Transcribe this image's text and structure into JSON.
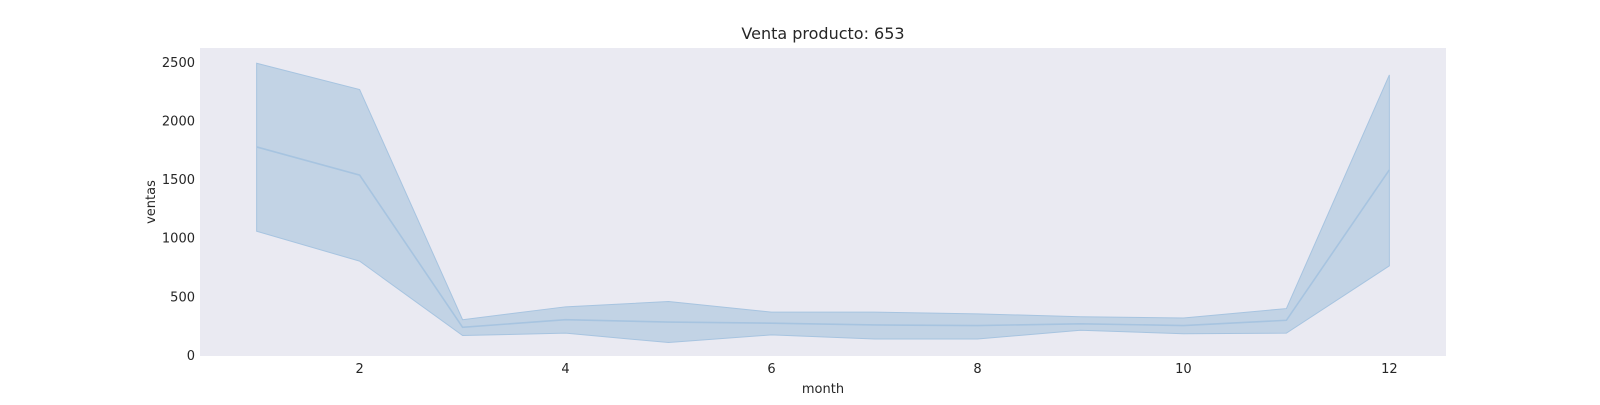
{
  "chart_data": {
    "type": "line",
    "title": "Venta producto: 653",
    "xlabel": "month",
    "ylabel": "ventas",
    "xlim": [
      0.45,
      12.55
    ],
    "ylim": [
      -10,
      2620
    ],
    "xticks": [
      2,
      4,
      6,
      8,
      10,
      12
    ],
    "yticks": [
      0,
      500,
      1000,
      1500,
      2000,
      2500
    ],
    "grid": false,
    "colors": {
      "plot_bg": "#eaeaf2",
      "line": "#a7c4e0",
      "band": "#c2d3e5"
    },
    "series": [
      {
        "x": [
          1,
          2,
          3,
          4,
          5,
          6,
          7,
          8,
          9,
          10,
          11,
          12
        ],
        "values": [
          1775,
          1535,
          235,
          300,
          280,
          270,
          255,
          250,
          265,
          250,
          295,
          1580
        ],
        "lower": [
          1055,
          800,
          165,
          185,
          105,
          170,
          135,
          135,
          210,
          180,
          185,
          760
        ],
        "upper": [
          2490,
          2265,
          300,
          410,
          455,
          365,
          365,
          350,
          325,
          315,
          395,
          2390
        ]
      }
    ]
  }
}
